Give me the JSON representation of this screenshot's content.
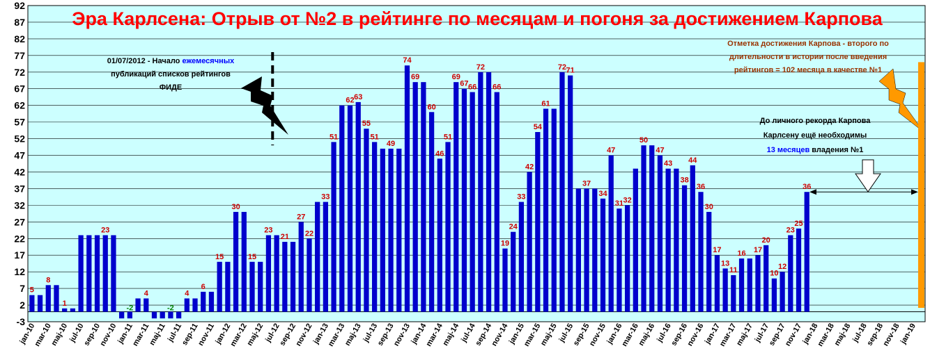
{
  "colors": {
    "plot_bg": "#ccffff",
    "bar": "#0000cc",
    "label_pos": "#cc0000",
    "label_neg": "#008000",
    "title": "#ff0000",
    "karpov_bar": "#ff9900",
    "karpov_note": "#993300",
    "blue_text": "#0000ff"
  },
  "title": "Эра Карлсена: Отрыв от №2 в рейтинге по месяцам и погоня за достижением Карпова",
  "annotations": {
    "fide_line1_a": "01/07/2012 - Начало ",
    "fide_line1_b": "ежемесячных",
    "fide_line2": "публикаций списков рейтингов",
    "fide_line3": "ФИДЕ",
    "karpov_line1": "Отметка достижения Карпова -  второго по",
    "karpov_line2": "длительности в истории после введения",
    "karpov_line3": "рейтингов = 102 месяца в качестве №1",
    "record_line1": "До личного рекорда Карпова",
    "record_line2": "Карлсену ещё необходимы",
    "record_line3_a": "13 месяцев",
    "record_line3_b": " владения №1"
  },
  "chart_data": {
    "type": "bar",
    "title": "Эра Карлсена: Отрыв от №2 в рейтинге по месяцам и погоня за достижением Карпова",
    "ylim": [
      -3,
      92
    ],
    "yticks": [
      -3,
      2,
      7,
      12,
      17,
      22,
      27,
      32,
      37,
      42,
      47,
      52,
      57,
      62,
      67,
      72,
      77,
      82,
      87,
      92
    ],
    "grid": true,
    "x_tick_labels": [
      "jan-10",
      "mar-10",
      "maj-10",
      "jul-10",
      "sep-10",
      "nov-10",
      "jan-11",
      "mar-11",
      "maj-11",
      "jul-11",
      "sep-11",
      "nov-11",
      "jan-12",
      "mar-12",
      "maj-12",
      "jul-12",
      "sep-12",
      "nov-12",
      "jan-13",
      "mar-13",
      "maj-13",
      "jul-13",
      "sep-13",
      "nov-13",
      "jan-14",
      "mar-14",
      "maj-14",
      "jul-14",
      "sep-14",
      "nov-14",
      "jan-15",
      "mar-15",
      "maj-15",
      "jul-15",
      "sep-15",
      "nov-15",
      "jan-16",
      "mar-16",
      "maj-16",
      "jul-16",
      "sep-16",
      "nov-16",
      "jan-17",
      "mar-17",
      "maj-17",
      "jul-17",
      "sep-17",
      "nov-17",
      "jan-18",
      "mar-18",
      "maj-18",
      "jul-18",
      "sep-18",
      "nov-18",
      "jan-19"
    ],
    "values": [
      5,
      5,
      8,
      8,
      1,
      1,
      23,
      23,
      23,
      23,
      23,
      -2,
      -2,
      4,
      4,
      -2,
      -2,
      -2,
      -2,
      4,
      4,
      6,
      6,
      15,
      15,
      30,
      30,
      15,
      15,
      23,
      23,
      21,
      21,
      27,
      22,
      33,
      33,
      51,
      62,
      62,
      63,
      55,
      51,
      49,
      49,
      49,
      74,
      69,
      69,
      60,
      46,
      51,
      69,
      67,
      66,
      72,
      72,
      66,
      19,
      24,
      33,
      42,
      54,
      61,
      61,
      72,
      71,
      37,
      37,
      37,
      34,
      47,
      31,
      32,
      43,
      50,
      50,
      47,
      43,
      43,
      38,
      44,
      36,
      30,
      17,
      13,
      11,
      16,
      16,
      17,
      20,
      10,
      12,
      23,
      25,
      36
    ],
    "data_labels": [
      {
        "i": 0,
        "text": "5"
      },
      {
        "i": 2,
        "text": "8"
      },
      {
        "i": 4,
        "text": "1"
      },
      {
        "i": 9,
        "text": "23"
      },
      {
        "i": 12,
        "text": "-2"
      },
      {
        "i": 14,
        "text": "4"
      },
      {
        "i": 17,
        "text": "-2"
      },
      {
        "i": 19,
        "text": "4"
      },
      {
        "i": 21,
        "text": "6"
      },
      {
        "i": 23,
        "text": "15"
      },
      {
        "i": 25,
        "text": "30"
      },
      {
        "i": 27,
        "text": "15"
      },
      {
        "i": 29,
        "text": "23"
      },
      {
        "i": 31,
        "text": "21"
      },
      {
        "i": 33,
        "text": "27"
      },
      {
        "i": 34,
        "text": "22"
      },
      {
        "i": 36,
        "text": "33"
      },
      {
        "i": 37,
        "text": "51"
      },
      {
        "i": 39,
        "text": "62"
      },
      {
        "i": 40,
        "text": "63"
      },
      {
        "i": 41,
        "text": "55"
      },
      {
        "i": 42,
        "text": "51"
      },
      {
        "i": 44,
        "text": "49"
      },
      {
        "i": 46,
        "text": "74"
      },
      {
        "i": 47,
        "text": "69"
      },
      {
        "i": 49,
        "text": "60"
      },
      {
        "i": 50,
        "text": "46"
      },
      {
        "i": 51,
        "text": "51"
      },
      {
        "i": 52,
        "text": "69"
      },
      {
        "i": 53,
        "text": "67"
      },
      {
        "i": 54,
        "text": "66"
      },
      {
        "i": 55,
        "text": "72"
      },
      {
        "i": 57,
        "text": "66"
      },
      {
        "i": 58,
        "text": "19"
      },
      {
        "i": 59,
        "text": "24"
      },
      {
        "i": 60,
        "text": "33"
      },
      {
        "i": 61,
        "text": "42"
      },
      {
        "i": 62,
        "text": "54"
      },
      {
        "i": 63,
        "text": "61"
      },
      {
        "i": 65,
        "text": "72"
      },
      {
        "i": 66,
        "text": "71"
      },
      {
        "i": 68,
        "text": "37"
      },
      {
        "i": 70,
        "text": "34"
      },
      {
        "i": 71,
        "text": "47"
      },
      {
        "i": 72,
        "text": "31"
      },
      {
        "i": 73,
        "text": "32"
      },
      {
        "i": 75,
        "text": "50"
      },
      {
        "i": 77,
        "text": "47"
      },
      {
        "i": 78,
        "text": "43"
      },
      {
        "i": 80,
        "text": "38"
      },
      {
        "i": 81,
        "text": "44"
      },
      {
        "i": 82,
        "text": "36"
      },
      {
        "i": 83,
        "text": "30"
      },
      {
        "i": 84,
        "text": "17"
      },
      {
        "i": 85,
        "text": "13"
      },
      {
        "i": 86,
        "text": "11"
      },
      {
        "i": 87,
        "text": "16"
      },
      {
        "i": 89,
        "text": "17"
      },
      {
        "i": 90,
        "text": "20"
      },
      {
        "i": 91,
        "text": "10"
      },
      {
        "i": 92,
        "text": "12"
      },
      {
        "i": 93,
        "text": "23"
      },
      {
        "i": 94,
        "text": "25"
      },
      {
        "i": 95,
        "text": "36"
      }
    ],
    "markers": {
      "fide_dashed_line_after_month": "jun-12",
      "karpov_mark_value": 75,
      "gap_arrow_level": 36
    }
  }
}
